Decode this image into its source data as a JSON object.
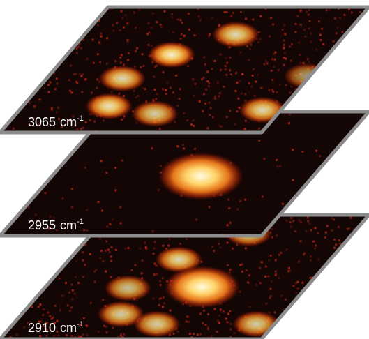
{
  "panels": [
    {
      "wavenumber": "3065",
      "unit": "cm",
      "exponent": "-1",
      "spots": [
        {
          "u": 0.58,
          "v": 0.22,
          "intensity": 0.85
        },
        {
          "u": 0.4,
          "v": 0.38,
          "intensity": 0.95
        },
        {
          "u": 0.29,
          "v": 0.57,
          "intensity": 0.85
        },
        {
          "u": 0.33,
          "v": 0.79,
          "intensity": 0.9
        },
        {
          "u": 0.53,
          "v": 0.85,
          "intensity": 0.8
        },
        {
          "u": 0.93,
          "v": 0.82,
          "intensity": 0.85
        },
        {
          "u": 0.99,
          "v": 0.55,
          "intensity": 0.6
        }
      ]
    },
    {
      "wavenumber": "2955",
      "unit": "cm",
      "exponent": "-1",
      "spots": [
        {
          "u": 0.57,
          "v": 0.52,
          "intensity": 1.0,
          "scale": 1.8
        }
      ]
    },
    {
      "wavenumber": "2910",
      "unit": "cm",
      "exponent": "-1",
      "spots": [
        {
          "u": 0.6,
          "v": 0.15,
          "intensity": 0.8
        },
        {
          "u": 0.42,
          "v": 0.36,
          "intensity": 0.85
        },
        {
          "u": 0.6,
          "v": 0.58,
          "intensity": 1.0,
          "scale": 1.6
        },
        {
          "u": 0.32,
          "v": 0.59,
          "intensity": 0.75
        },
        {
          "u": 0.38,
          "v": 0.8,
          "intensity": 0.8
        },
        {
          "u": 0.55,
          "v": 0.88,
          "intensity": 0.8
        },
        {
          "u": 0.93,
          "v": 0.88,
          "intensity": 0.8
        }
      ]
    }
  ],
  "colors": {
    "panel_fill": "#140604",
    "panel_border": "#8c8c8c",
    "hot_core": "#fffbe0",
    "hot_mid": "#ffb23a",
    "hot_edge": "#d2400a",
    "noise": "#b8281a",
    "label": "#ffffff"
  }
}
